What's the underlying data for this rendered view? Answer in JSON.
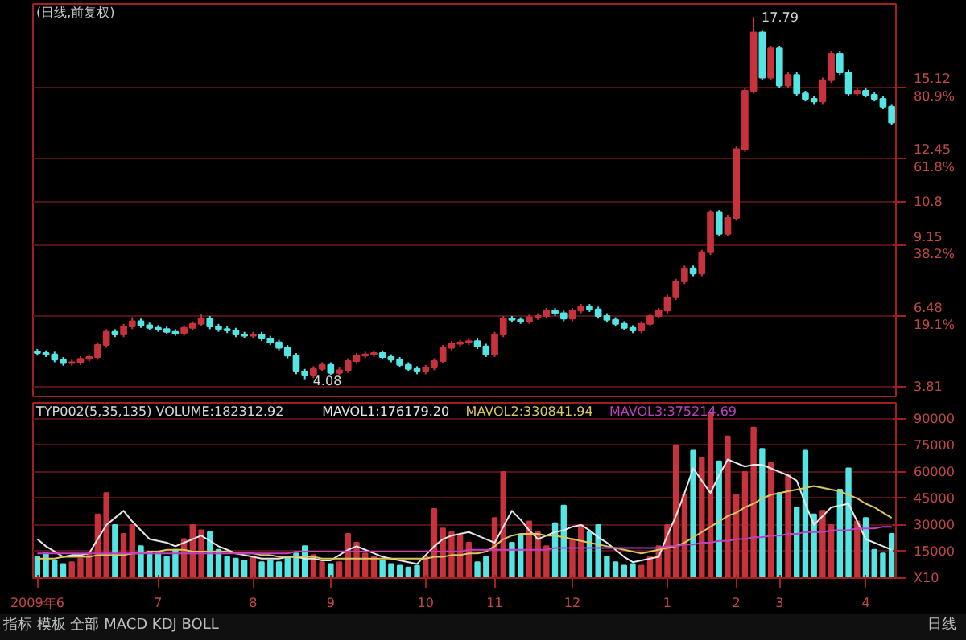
{
  "chart_data": [
    {
      "type": "candlestick",
      "title": "(日线,前复权)",
      "grid": "y",
      "categories": [
        null,
        null,
        null,
        null,
        null,
        null,
        null,
        null,
        null,
        null,
        null,
        null,
        null,
        null,
        null,
        null,
        null,
        null,
        null,
        null,
        null,
        null,
        null,
        null,
        null,
        null,
        null,
        null,
        null,
        null,
        null,
        null,
        null,
        null,
        null,
        null,
        null,
        null,
        null,
        null,
        null,
        null,
        null,
        null,
        null,
        null,
        null,
        null,
        null,
        null,
        null,
        null,
        null,
        null,
        null,
        null,
        null,
        null,
        null,
        null,
        null,
        null,
        null,
        null,
        null,
        null,
        null,
        null,
        null,
        null,
        null,
        null,
        null,
        null,
        null,
        null,
        null,
        null,
        null,
        null,
        null,
        null,
        null,
        null,
        null,
        null,
        null,
        null,
        null,
        null,
        null,
        null,
        null,
        null,
        null,
        null,
        null,
        null,
        null,
        null
      ],
      "ohlc": [
        [
          5.15,
          5.25,
          5.0,
          5.1
        ],
        [
          5.1,
          5.2,
          4.95,
          5.05
        ],
        [
          5.05,
          5.15,
          4.75,
          4.85
        ],
        [
          4.85,
          4.95,
          4.62,
          4.72
        ],
        [
          4.72,
          4.85,
          4.62,
          4.75
        ],
        [
          4.75,
          4.98,
          4.65,
          4.88
        ],
        [
          4.88,
          5.05,
          4.78,
          4.95
        ],
        [
          4.95,
          5.5,
          4.85,
          5.4
        ],
        [
          5.4,
          6.0,
          5.3,
          5.9
        ],
        [
          5.9,
          6.0,
          5.7,
          5.8
        ],
        [
          5.8,
          6.2,
          5.7,
          6.1
        ],
        [
          6.1,
          6.45,
          6.0,
          6.3
        ],
        [
          6.3,
          6.4,
          6.05,
          6.15
        ],
        [
          6.15,
          6.25,
          5.95,
          6.05
        ],
        [
          6.05,
          6.15,
          5.9,
          6.0
        ],
        [
          6.0,
          6.1,
          5.8,
          5.9
        ],
        [
          5.9,
          6.0,
          5.75,
          5.85
        ],
        [
          5.85,
          6.15,
          5.75,
          6.05
        ],
        [
          6.05,
          6.3,
          5.95,
          6.2
        ],
        [
          6.2,
          6.55,
          6.1,
          6.4
        ],
        [
          6.4,
          6.5,
          6.0,
          6.1
        ],
        [
          6.1,
          6.2,
          5.9,
          6.0
        ],
        [
          6.0,
          6.1,
          5.85,
          5.95
        ],
        [
          5.95,
          6.05,
          5.7,
          5.8
        ],
        [
          5.8,
          5.9,
          5.65,
          5.75
        ],
        [
          5.75,
          5.9,
          5.65,
          5.8
        ],
        [
          5.8,
          5.9,
          5.55,
          5.65
        ],
        [
          5.65,
          5.75,
          5.4,
          5.5
        ],
        [
          5.5,
          5.6,
          5.2,
          5.3
        ],
        [
          5.3,
          5.4,
          4.9,
          5.0
        ],
        [
          5.0,
          5.1,
          4.3,
          4.4
        ],
        [
          4.4,
          4.5,
          4.08,
          4.25
        ],
        [
          4.25,
          4.6,
          4.15,
          4.5
        ],
        [
          4.5,
          4.75,
          4.4,
          4.65
        ],
        [
          4.65,
          4.75,
          4.25,
          4.35
        ],
        [
          4.35,
          4.55,
          4.25,
          4.45
        ],
        [
          4.45,
          4.9,
          4.35,
          4.8
        ],
        [
          4.8,
          5.1,
          4.7,
          5.0
        ],
        [
          5.0,
          5.15,
          4.9,
          5.05
        ],
        [
          5.05,
          5.2,
          4.95,
          5.1
        ],
        [
          5.1,
          5.2,
          4.85,
          4.95
        ],
        [
          4.95,
          5.05,
          4.75,
          4.85
        ],
        [
          4.85,
          4.95,
          4.55,
          4.65
        ],
        [
          4.65,
          4.75,
          4.4,
          4.5
        ],
        [
          4.5,
          4.6,
          4.3,
          4.4
        ],
        [
          4.4,
          4.65,
          4.3,
          4.55
        ],
        [
          4.55,
          4.9,
          4.45,
          4.8
        ],
        [
          4.8,
          5.4,
          4.7,
          5.3
        ],
        [
          5.3,
          5.55,
          5.2,
          5.45
        ],
        [
          5.45,
          5.6,
          5.35,
          5.5
        ],
        [
          5.5,
          5.65,
          5.4,
          5.55
        ],
        [
          5.55,
          5.65,
          5.25,
          5.35
        ],
        [
          5.35,
          5.45,
          4.95,
          5.05
        ],
        [
          5.05,
          5.9,
          4.95,
          5.8
        ],
        [
          5.8,
          6.5,
          5.7,
          6.4
        ],
        [
          6.4,
          6.5,
          6.25,
          6.35
        ],
        [
          6.35,
          6.45,
          6.2,
          6.3
        ],
        [
          6.3,
          6.55,
          6.2,
          6.45
        ],
        [
          6.45,
          6.6,
          6.35,
          6.5
        ],
        [
          6.5,
          6.8,
          6.4,
          6.7
        ],
        [
          6.7,
          6.8,
          6.5,
          6.6
        ],
        [
          6.6,
          6.7,
          6.3,
          6.4
        ],
        [
          6.4,
          6.8,
          6.3,
          6.7
        ],
        [
          6.7,
          6.95,
          6.6,
          6.85
        ],
        [
          6.85,
          6.95,
          6.65,
          6.75
        ],
        [
          6.75,
          6.85,
          6.4,
          6.5
        ],
        [
          6.5,
          6.6,
          6.25,
          6.35
        ],
        [
          6.35,
          6.45,
          6.1,
          6.2
        ],
        [
          6.2,
          6.3,
          5.95,
          6.05
        ],
        [
          6.05,
          6.15,
          5.85,
          5.95
        ],
        [
          5.95,
          6.3,
          5.85,
          6.2
        ],
        [
          6.2,
          6.6,
          6.1,
          6.5
        ],
        [
          6.5,
          6.8,
          6.4,
          6.7
        ],
        [
          6.7,
          7.3,
          6.6,
          7.2
        ],
        [
          7.2,
          7.9,
          7.1,
          7.8
        ],
        [
          7.8,
          8.4,
          7.7,
          8.3
        ],
        [
          8.3,
          8.4,
          8.0,
          8.1
        ],
        [
          8.1,
          9.0,
          8.0,
          8.9
        ],
        [
          8.9,
          10.5,
          8.8,
          10.4
        ],
        [
          10.4,
          10.5,
          9.5,
          9.6
        ],
        [
          9.6,
          10.3,
          9.5,
          10.2
        ],
        [
          10.2,
          12.9,
          10.1,
          12.8
        ],
        [
          12.8,
          15.1,
          12.7,
          15.0
        ],
        [
          15.0,
          17.79,
          14.9,
          17.2
        ],
        [
          17.2,
          17.3,
          15.4,
          15.5
        ],
        [
          15.5,
          16.7,
          15.4,
          16.6
        ],
        [
          16.6,
          16.7,
          15.1,
          15.2
        ],
        [
          15.2,
          15.7,
          15.1,
          15.6
        ],
        [
          15.6,
          15.7,
          14.8,
          14.9
        ],
        [
          14.9,
          15.0,
          14.6,
          14.7
        ],
        [
          14.7,
          14.8,
          14.5,
          14.6
        ],
        [
          14.6,
          15.5,
          14.5,
          15.4
        ],
        [
          15.4,
          16.5,
          15.3,
          16.4
        ],
        [
          16.4,
          16.5,
          15.6,
          15.7
        ],
        [
          15.7,
          15.8,
          14.8,
          14.9
        ],
        [
          14.9,
          15.1,
          14.8,
          15.0
        ],
        [
          15.0,
          15.1,
          14.75,
          14.85
        ],
        [
          14.85,
          14.95,
          14.6,
          14.7
        ],
        [
          14.7,
          14.8,
          14.3,
          14.4
        ],
        [
          14.4,
          14.5,
          13.7,
          13.8
        ]
      ],
      "colors": [
        "#54e4e4",
        "#54e4e4",
        "#54e4e4",
        "#54e4e4",
        "#c8323c",
        "#c8323c",
        "#c8323c",
        "#c8323c",
        "#c8323c",
        "#54e4e4",
        "#c8323c",
        "#c8323c",
        "#54e4e4",
        "#54e4e4",
        "#54e4e4",
        "#54e4e4",
        "#54e4e4",
        "#c8323c",
        "#c8323c",
        "#c8323c",
        "#54e4e4",
        "#54e4e4",
        "#54e4e4",
        "#54e4e4",
        "#54e4e4",
        "#c8323c",
        "#54e4e4",
        "#54e4e4",
        "#54e4e4",
        "#54e4e4",
        "#54e4e4",
        "#54e4e4",
        "#c8323c",
        "#c8323c",
        "#54e4e4",
        "#c8323c",
        "#c8323c",
        "#c8323c",
        "#c8323c",
        "#c8323c",
        "#54e4e4",
        "#54e4e4",
        "#54e4e4",
        "#54e4e4",
        "#54e4e4",
        "#c8323c",
        "#c8323c",
        "#c8323c",
        "#c8323c",
        "#c8323c",
        "#c8323c",
        "#54e4e4",
        "#54e4e4",
        "#c8323c",
        "#c8323c",
        "#54e4e4",
        "#54e4e4",
        "#c8323c",
        "#c8323c",
        "#c8323c",
        "#54e4e4",
        "#54e4e4",
        "#c8323c",
        "#c8323c",
        "#54e4e4",
        "#54e4e4",
        "#54e4e4",
        "#54e4e4",
        "#54e4e4",
        "#54e4e4",
        "#c8323c",
        "#c8323c",
        "#c8323c",
        "#c8323c",
        "#c8323c",
        "#c8323c",
        "#54e4e4",
        "#c8323c",
        "#c8323c",
        "#54e4e4",
        "#c8323c",
        "#c8323c",
        "#c8323c",
        "#c8323c",
        "#54e4e4",
        "#c8323c",
        "#54e4e4",
        "#c8323c",
        "#54e4e4",
        "#54e4e4",
        "#54e4e4",
        "#c8323c",
        "#c8323c",
        "#54e4e4",
        "#54e4e4",
        "#c8323c",
        "#54e4e4",
        "#54e4e4",
        "#54e4e4",
        "#54e4e4"
      ],
      "ylim": [
        3.46,
        18.28
      ],
      "yticks": [
        3.81,
        {
          "value": 6.48,
          "label": "6.48\n19.1%"
        },
        {
          "value": 9.15,
          "label": "9.15\n38.2%"
        },
        10.8,
        {
          "value": 12.45,
          "label": "12.45\n61.8%"
        },
        {
          "value": 15.12,
          "label": "15.12\n80.9%"
        }
      ],
      "annotations": [
        "17.79",
        "4.08"
      ]
    },
    {
      "type": "bar",
      "title": "TYP002(5,35,135) VOLUME:182312.92",
      "grid": "y",
      "categories": [
        "2009年6",
        null,
        null,
        null,
        null,
        null,
        null,
        null,
        null,
        null,
        null,
        null,
        null,
        null,
        "7",
        null,
        null,
        null,
        null,
        null,
        null,
        null,
        null,
        null,
        null,
        "8",
        null,
        null,
        null,
        null,
        null,
        null,
        null,
        null,
        "9",
        null,
        null,
        null,
        null,
        null,
        null,
        null,
        null,
        null,
        null,
        "10",
        null,
        null,
        null,
        null,
        null,
        null,
        null,
        "11",
        null,
        null,
        null,
        null,
        null,
        null,
        null,
        null,
        "12",
        null,
        null,
        null,
        null,
        null,
        null,
        null,
        null,
        null,
        null,
        "1",
        null,
        null,
        null,
        null,
        null,
        null,
        null,
        "2",
        null,
        null,
        null,
        null,
        "3",
        null,
        null,
        null,
        null,
        null,
        null,
        null,
        null,
        null,
        "4",
        null,
        null,
        null
      ],
      "series": [
        {
          "type": "bar",
          "values": [
            12000,
            14000,
            10000,
            8000,
            9000,
            11000,
            13000,
            36000,
            48000,
            30000,
            25000,
            30000,
            18000,
            15000,
            14000,
            12000,
            16000,
            22000,
            30000,
            27000,
            26000,
            16000,
            12000,
            11000,
            10000,
            12000,
            9000,
            10000,
            9000,
            12000,
            14000,
            18000,
            13000,
            9000,
            8000,
            9000,
            25000,
            20000,
            14000,
            12000,
            10000,
            8000,
            7000,
            6000,
            7000,
            12000,
            39000,
            28000,
            26000,
            24000,
            20000,
            9000,
            12000,
            34000,
            60000,
            20000,
            24000,
            32000,
            26000,
            18000,
            31000,
            41000,
            22000,
            30000,
            26000,
            30000,
            12000,
            9000,
            7000,
            8000,
            7000,
            12000,
            18000,
            30000,
            75000,
            47000,
            72000,
            68000,
            93000,
            66000,
            80000,
            47000,
            60000,
            85000,
            73000,
            65000,
            48000,
            58000,
            40000,
            72000,
            36000,
            38000,
            30000,
            50000,
            62000,
            32000,
            34000,
            16000,
            14000,
            25000
          ],
          "colors": [
            "#54e4e4",
            "#54e4e4",
            "#54e4e4",
            "#54e4e4",
            "#c8323c",
            "#c8323c",
            "#c8323c",
            "#c8323c",
            "#c8323c",
            "#54e4e4",
            "#c8323c",
            "#c8323c",
            "#54e4e4",
            "#54e4e4",
            "#54e4e4",
            "#54e4e4",
            "#54e4e4",
            "#c8323c",
            "#c8323c",
            "#c8323c",
            "#54e4e4",
            "#54e4e4",
            "#54e4e4",
            "#54e4e4",
            "#54e4e4",
            "#c8323c",
            "#54e4e4",
            "#54e4e4",
            "#54e4e4",
            "#54e4e4",
            "#54e4e4",
            "#54e4e4",
            "#c8323c",
            "#c8323c",
            "#54e4e4",
            "#c8323c",
            "#c8323c",
            "#c8323c",
            "#c8323c",
            "#c8323c",
            "#54e4e4",
            "#54e4e4",
            "#54e4e4",
            "#54e4e4",
            "#54e4e4",
            "#c8323c",
            "#c8323c",
            "#c8323c",
            "#c8323c",
            "#c8323c",
            "#c8323c",
            "#54e4e4",
            "#54e4e4",
            "#c8323c",
            "#c8323c",
            "#54e4e4",
            "#54e4e4",
            "#c8323c",
            "#c8323c",
            "#c8323c",
            "#54e4e4",
            "#54e4e4",
            "#c8323c",
            "#c8323c",
            "#54e4e4",
            "#54e4e4",
            "#54e4e4",
            "#54e4e4",
            "#54e4e4",
            "#54e4e4",
            "#c8323c",
            "#c8323c",
            "#c8323c",
            "#c8323c",
            "#c8323c",
            "#c8323c",
            "#54e4e4",
            "#c8323c",
            "#c8323c",
            "#54e4e4",
            "#c8323c",
            "#c8323c",
            "#c8323c",
            "#c8323c",
            "#54e4e4",
            "#c8323c",
            "#54e4e4",
            "#c8323c",
            "#54e4e4",
            "#54e4e4",
            "#54e4e4",
            "#c8323c",
            "#c8323c",
            "#54e4e4",
            "#54e4e4",
            "#c8323c",
            "#54e4e4",
            "#54e4e4",
            "#54e4e4",
            "#54e4e4"
          ]
        },
        {
          "type": "line",
          "name": "MAVOL1:176179.20",
          "color": "#e8e8e8",
          "values": [
            22000,
            18000,
            15000,
            12000,
            13000,
            13000,
            14000,
            22000,
            30000,
            34000,
            38000,
            32000,
            27000,
            22000,
            21000,
            20000,
            18000,
            20000,
            22000,
            24000,
            21000,
            18000,
            16000,
            14000,
            13000,
            12000,
            11000,
            11000,
            11000,
            12000,
            12000,
            11000,
            11000,
            10000,
            10000,
            13000,
            16000,
            18000,
            16000,
            14000,
            12000,
            11000,
            10000,
            9000,
            8000,
            13000,
            18000,
            22000,
            24000,
            25000,
            26000,
            24000,
            22000,
            20000,
            29000,
            38000,
            33000,
            27000,
            22000,
            24000,
            26000,
            27000,
            29000,
            30000,
            27000,
            23000,
            20000,
            16000,
            12000,
            9000,
            10000,
            11000,
            12000,
            24000,
            35000,
            48000,
            62000,
            55000,
            48000,
            58000,
            67000,
            65000,
            63000,
            64000,
            64000,
            62000,
            60000,
            58000,
            55000,
            42000,
            30000,
            35000,
            40000,
            41000,
            42000,
            32000,
            22000,
            20000,
            18000,
            16000
          ]
        },
        {
          "type": "line",
          "name": "MAVOL2:330841.94",
          "color": "#d8c860",
          "values": [
            11000,
            11000,
            11000,
            12000,
            12000,
            12000,
            12000,
            13000,
            13000,
            13000,
            13000,
            14000,
            14000,
            15000,
            15000,
            16000,
            16000,
            16000,
            15000,
            15000,
            15000,
            15000,
            15000,
            14000,
            14000,
            14000,
            13000,
            13000,
            12000,
            12000,
            12000,
            12000,
            12000,
            11000,
            11000,
            11000,
            11000,
            11000,
            11000,
            11000,
            11000,
            11000,
            11000,
            11000,
            11000,
            11000,
            12000,
            12000,
            13000,
            13000,
            14000,
            14000,
            15000,
            18000,
            22000,
            24000,
            25000,
            25000,
            25000,
            24000,
            24000,
            23000,
            22000,
            21000,
            20000,
            19000,
            18000,
            17000,
            16000,
            15000,
            14000,
            15000,
            16000,
            17000,
            18000,
            20000,
            23000,
            26000,
            29000,
            32000,
            35000,
            37000,
            40000,
            42000,
            45000,
            47000,
            48000,
            49000,
            50000,
            51000,
            52000,
            51000,
            50000,
            49000,
            47000,
            45000,
            42000,
            40000,
            37000,
            34000
          ]
        },
        {
          "type": "line",
          "name": "MAVOL3:375214.69",
          "color": "#c040c0",
          "values": [
            14000,
            14000,
            14000,
            14000,
            14000,
            14000,
            14000,
            14000,
            14000,
            14000,
            14000,
            14000,
            14000,
            14000,
            14000,
            14000,
            14000,
            14000,
            14000,
            14000,
            14000,
            14000,
            14000,
            14000,
            14000,
            14000,
            14000,
            14000,
            14000,
            14000,
            15000,
            15000,
            15000,
            15000,
            15000,
            15000,
            15000,
            15000,
            15000,
            15000,
            15000,
            15000,
            15000,
            15000,
            15000,
            15000,
            15000,
            15000,
            15000,
            15000,
            16000,
            16000,
            16000,
            16000,
            16000,
            16000,
            16000,
            16000,
            16000,
            16000,
            17000,
            17000,
            17000,
            17000,
            17000,
            17000,
            17000,
            17000,
            17000,
            17000,
            17000,
            17000,
            17000,
            18000,
            18000,
            19000,
            19000,
            20000,
            20000,
            21000,
            21000,
            22000,
            22000,
            23000,
            23000,
            24000,
            24000,
            25000,
            25000,
            26000,
            26000,
            26000,
            27000,
            27000,
            27000,
            28000,
            28000,
            28000,
            29000,
            29000
          ]
        }
      ],
      "ylim": [
        0,
        99000
      ],
      "yticks": [
        {
          "value": 0,
          "label": "X10"
        },
        15000,
        30000,
        45000,
        60000,
        75000,
        90000
      ],
      "annotations": [
        "指标 模板 全部 MACD KDJ BOLL",
        "日线"
      ]
    }
  ]
}
